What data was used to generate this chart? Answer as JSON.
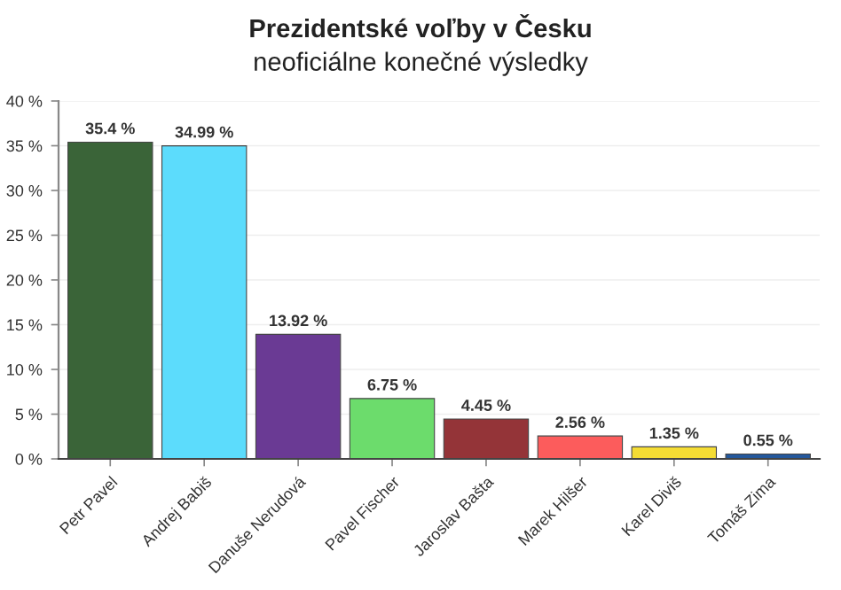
{
  "chart_data": {
    "type": "bar",
    "title": "Prezidentské voľby v Česku",
    "subtitle": "neoficiálne konečné výsledky",
    "categories": [
      "Petr Pavel",
      "Andrej Babiš",
      "Danuše Nerudová",
      "Pavel Fischer",
      "Jaroslav Bašta",
      "Marek Hilšer",
      "Karel Diviš",
      "Tomáš Zima"
    ],
    "values": [
      35.4,
      34.99,
      13.92,
      6.75,
      4.45,
      2.56,
      1.35,
      0.55
    ],
    "colors": [
      "#3a6438",
      "#5cdcfc",
      "#6a3a94",
      "#6cdc6c",
      "#943438",
      "#fc5c5c",
      "#f4dc34",
      "#24589c"
    ],
    "value_labels": [
      "35.4 %",
      "34.99 %",
      "13.92 %",
      "6.75 %",
      "4.45 %",
      "2.56 %",
      "1.35 %",
      "0.55 %"
    ],
    "ylim": [
      0,
      40
    ],
    "yticks": [
      {
        "value": 0,
        "label": "0 %"
      },
      {
        "value": 5,
        "label": "5 %"
      },
      {
        "value": 10,
        "label": "10 %"
      },
      {
        "value": 15,
        "label": "15 %"
      },
      {
        "value": 20,
        "label": "20 %"
      },
      {
        "value": 25,
        "label": "25 %"
      },
      {
        "value": 30,
        "label": "30 %"
      },
      {
        "value": 35,
        "label": "35 %"
      },
      {
        "value": 40,
        "label": "40 %"
      }
    ],
    "grid": "y"
  }
}
